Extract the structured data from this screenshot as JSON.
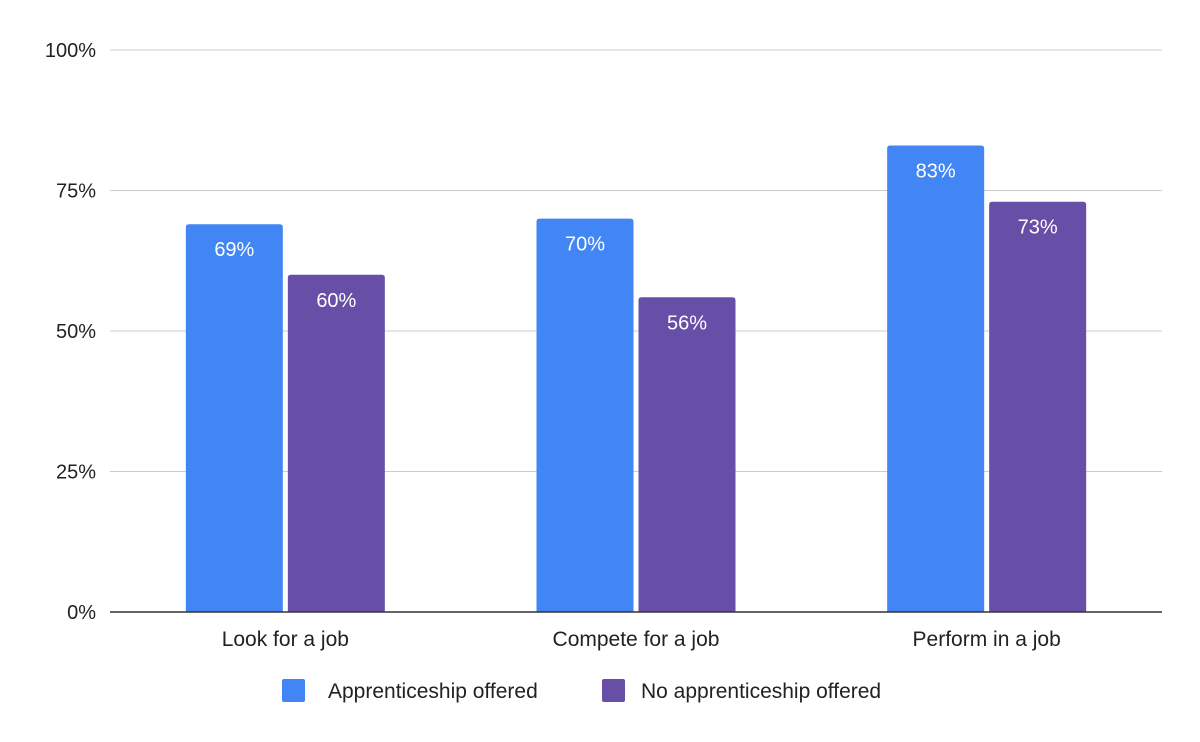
{
  "chart_data": {
    "type": "bar",
    "categories": [
      "Look for a job",
      "Compete for a job",
      "Perform in a job"
    ],
    "series": [
      {
        "name": "Apprenticeship offered",
        "values": [
          69,
          70,
          83
        ],
        "labels": [
          "69%",
          "70%",
          "83%"
        ],
        "color": "#4285f4"
      },
      {
        "name": "No apprenticeship offered",
        "values": [
          60,
          56,
          73
        ],
        "labels": [
          "60%",
          "56%",
          "73%"
        ],
        "color": "#674ea7"
      }
    ],
    "yticks": [
      0,
      25,
      50,
      75,
      100
    ],
    "ytick_labels": [
      "0%",
      "25%",
      "50%",
      "75%",
      "100%"
    ],
    "ylim": [
      0,
      100
    ],
    "grid": true,
    "legend_position": "bottom"
  }
}
